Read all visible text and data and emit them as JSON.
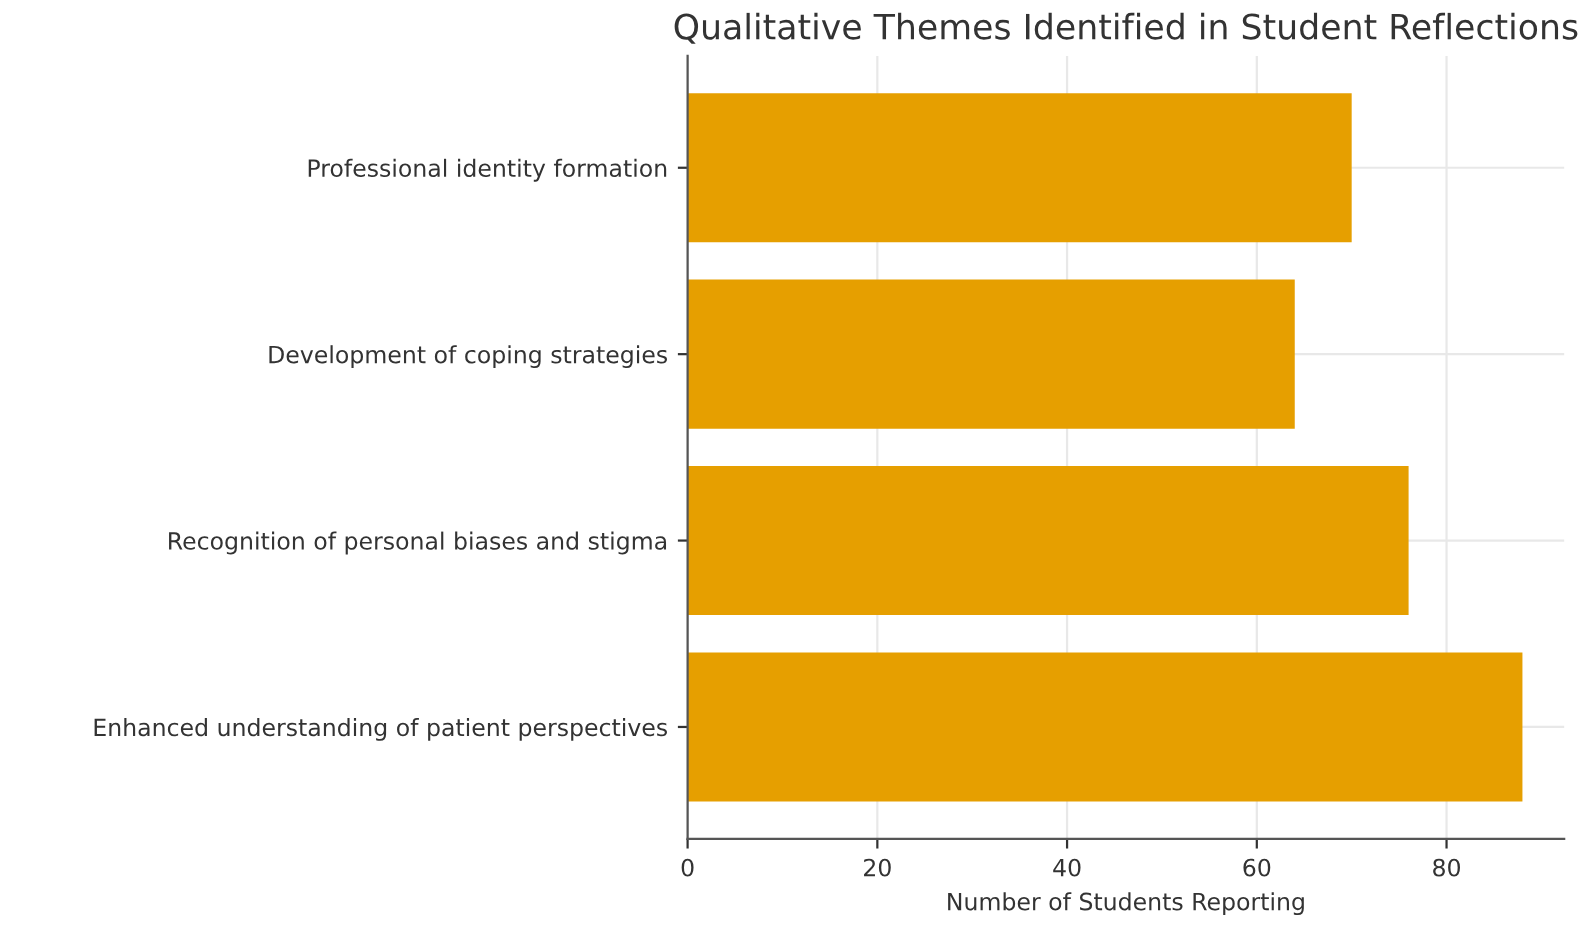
{
  "chart_data": {
    "type": "bar",
    "orientation": "horizontal",
    "title": "Qualitative Themes Identified in Student Reflections",
    "xlabel": "Number of Students Reporting",
    "categories": [
      "Professional identity formation",
      "Development of coping strategies",
      "Recognition of personal biases and stigma",
      "Enhanced understanding of patient perspectives"
    ],
    "values": [
      70,
      64,
      76,
      88
    ],
    "color": "#e69f00",
    "xlim": [
      0,
      92.4
    ],
    "xticks": [
      0,
      20,
      40,
      60,
      80
    ],
    "grid": true
  }
}
